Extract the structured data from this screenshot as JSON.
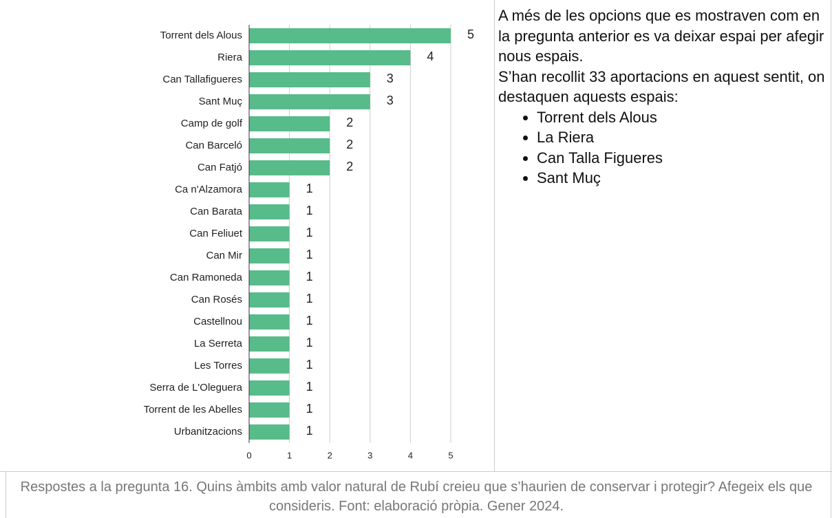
{
  "chart_data": {
    "type": "bar",
    "orientation": "horizontal",
    "categories": [
      "Torrent dels Alous",
      "Riera",
      "Can Tallafigueres",
      "Sant Muç",
      "Camp de golf",
      "Can Barceló",
      "Can Fatjó",
      "Ca n'Alzamora",
      "Can Barata",
      "Can Feliuet",
      "Can Mir",
      "Can Ramoneda",
      "Can Rosés",
      "Castellnou",
      "La Serreta",
      "Les Torres",
      "Serra de L'Oleguera",
      "Torrent de les Abelles",
      "Urbanitzacions"
    ],
    "values": [
      5,
      4,
      3,
      3,
      2,
      2,
      2,
      1,
      1,
      1,
      1,
      1,
      1,
      1,
      1,
      1,
      1,
      1,
      1
    ],
    "color": "#57bb8a",
    "xlim": [
      0,
      5
    ],
    "xticks": [
      0,
      1,
      2,
      3,
      4,
      5
    ],
    "grid": true
  },
  "notes": {
    "paragraphs": [
      "A més de les opcions que es mostraven com en la pregunta anterior es va deixar espai per afegir nous espais.",
      "S’han recollit 33 aportacions en aquest sentit, on destaquen aquests espais:"
    ],
    "bullets": [
      "Torrent dels Alous",
      "La Riera",
      "Can Talla Figueres",
      "Sant Muç"
    ]
  },
  "caption": "Respostes a la pregunta 16. Quins àmbits amb valor natural de Rubí creieu que s’haurien de conservar i protegir? Afegeix els que consideris. Font: elaboració pròpia. Gener 2024."
}
